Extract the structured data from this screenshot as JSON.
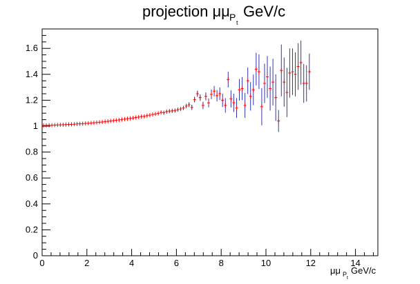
{
  "chart_data": {
    "type": "scatter",
    "title": {
      "main": "projection μμ",
      "sub": "P",
      "subsub": "t",
      "unit": "GeV/c"
    },
    "xlabel": {
      "main": "μμ",
      "sub": "P",
      "subsub": "t",
      "unit": "GeV/c"
    },
    "ylabel": "",
    "xlim": [
      0,
      15
    ],
    "ylim": [
      0,
      1.75
    ],
    "x_ticks": [
      0,
      2,
      4,
      6,
      8,
      10,
      12,
      14
    ],
    "x_tick_labels": [
      "0",
      "2",
      "4",
      "6",
      "8",
      "10",
      "12",
      "14"
    ],
    "y_ticks": [
      0,
      0.2,
      0.4,
      0.6,
      0.8,
      1.0,
      1.2,
      1.4,
      1.6
    ],
    "y_tick_labels": [
      "0",
      "0.2",
      "0.4",
      "0.6",
      "0.8",
      "1",
      "1.2",
      "1.4",
      "1.6"
    ],
    "grid": false,
    "bin_width": 0.125,
    "series": [
      {
        "marker_color": "#ff0000",
        "error_color": "#3333aa",
        "points": [
          [
            0.062,
            1.005,
            0.004
          ],
          [
            0.188,
            1.006,
            0.004
          ],
          [
            0.312,
            1.007,
            0.004
          ],
          [
            0.438,
            1.007,
            0.004
          ],
          [
            0.562,
            1.008,
            0.004
          ],
          [
            0.688,
            1.009,
            0.004
          ],
          [
            0.812,
            1.01,
            0.004
          ],
          [
            0.938,
            1.011,
            0.004
          ],
          [
            1.062,
            1.012,
            0.004
          ],
          [
            1.188,
            1.013,
            0.004
          ],
          [
            1.312,
            1.014,
            0.004
          ],
          [
            1.438,
            1.015,
            0.004
          ],
          [
            1.562,
            1.017,
            0.004
          ],
          [
            1.688,
            1.018,
            0.004
          ],
          [
            1.812,
            1.019,
            0.004
          ],
          [
            1.938,
            1.021,
            0.004
          ],
          [
            2.062,
            1.022,
            0.005
          ],
          [
            2.188,
            1.024,
            0.005
          ],
          [
            2.312,
            1.026,
            0.005
          ],
          [
            2.438,
            1.028,
            0.005
          ],
          [
            2.562,
            1.03,
            0.005
          ],
          [
            2.688,
            1.032,
            0.005
          ],
          [
            2.812,
            1.035,
            0.005
          ],
          [
            2.938,
            1.037,
            0.005
          ],
          [
            3.062,
            1.04,
            0.005
          ],
          [
            3.188,
            1.042,
            0.005
          ],
          [
            3.312,
            1.045,
            0.005
          ],
          [
            3.438,
            1.048,
            0.005
          ],
          [
            3.562,
            1.051,
            0.006
          ],
          [
            3.688,
            1.054,
            0.006
          ],
          [
            3.812,
            1.057,
            0.006
          ],
          [
            3.938,
            1.06,
            0.006
          ],
          [
            4.062,
            1.063,
            0.006
          ],
          [
            4.188,
            1.067,
            0.006
          ],
          [
            4.312,
            1.07,
            0.007
          ],
          [
            4.438,
            1.074,
            0.007
          ],
          [
            4.562,
            1.075,
            0.007
          ],
          [
            4.688,
            1.081,
            0.008
          ],
          [
            4.812,
            1.085,
            0.008
          ],
          [
            4.938,
            1.09,
            0.008
          ],
          [
            5.062,
            1.094,
            0.009
          ],
          [
            5.188,
            1.098,
            0.009
          ],
          [
            5.312,
            1.106,
            0.01
          ],
          [
            5.438,
            1.104,
            0.01
          ],
          [
            5.562,
            1.112,
            0.011
          ],
          [
            5.688,
            1.116,
            0.011
          ],
          [
            5.812,
            1.118,
            0.012
          ],
          [
            5.938,
            1.121,
            0.013
          ],
          [
            6.062,
            1.127,
            0.014
          ],
          [
            6.188,
            1.133,
            0.015
          ],
          [
            6.312,
            1.14,
            0.016
          ],
          [
            6.438,
            1.155,
            0.017
          ],
          [
            6.562,
            1.165,
            0.019
          ],
          [
            6.688,
            1.145,
            0.02
          ],
          [
            6.812,
            1.205,
            0.022
          ],
          [
            6.938,
            1.25,
            0.024
          ],
          [
            7.062,
            1.22,
            0.026
          ],
          [
            7.188,
            1.16,
            0.029
          ],
          [
            7.312,
            1.23,
            0.031
          ],
          [
            7.438,
            1.18,
            0.034
          ],
          [
            7.562,
            1.245,
            0.037
          ],
          [
            7.688,
            1.27,
            0.04
          ],
          [
            7.812,
            1.235,
            0.044
          ],
          [
            7.938,
            1.25,
            0.048
          ],
          [
            8.062,
            1.2,
            0.052
          ],
          [
            8.188,
            1.16,
            0.056
          ],
          [
            8.312,
            1.36,
            0.061
          ],
          [
            8.438,
            1.21,
            0.066
          ],
          [
            8.562,
            1.18,
            0.071
          ],
          [
            8.688,
            1.14,
            0.077
          ],
          [
            8.812,
            1.28,
            0.083
          ],
          [
            8.938,
            1.29,
            0.089
          ],
          [
            9.062,
            1.16,
            0.096
          ],
          [
            9.188,
            1.35,
            0.103
          ],
          [
            9.312,
            1.23,
            0.11
          ],
          [
            9.438,
            1.28,
            0.118
          ],
          [
            9.562,
            1.44,
            0.126
          ],
          [
            9.688,
            1.42,
            0.134
          ],
          [
            9.812,
            1.15,
            0.143
          ],
          [
            9.938,
            1.33,
            0.152
          ],
          [
            10.062,
            1.38,
            0.161
          ],
          [
            10.188,
            1.29,
            0.17
          ],
          [
            10.312,
            1.34,
            0.18
          ],
          [
            10.438,
            1.22,
            0.18
          ],
          [
            10.562,
            1.04,
            0.085
          ],
          [
            10.688,
            1.43,
            0.2
          ],
          [
            10.812,
            1.34,
            0.19
          ],
          [
            10.938,
            1.26,
            0.19
          ],
          [
            11.062,
            1.41,
            0.19
          ],
          [
            11.188,
            1.42,
            0.18
          ],
          [
            11.312,
            1.4,
            0.17
          ],
          [
            11.438,
            1.46,
            0.18
          ],
          [
            11.562,
            1.49,
            0.17
          ],
          [
            11.688,
            1.33,
            0.15
          ],
          [
            11.812,
            1.33,
            0.14
          ],
          [
            11.938,
            1.42,
            0.14
          ]
        ]
      }
    ]
  }
}
